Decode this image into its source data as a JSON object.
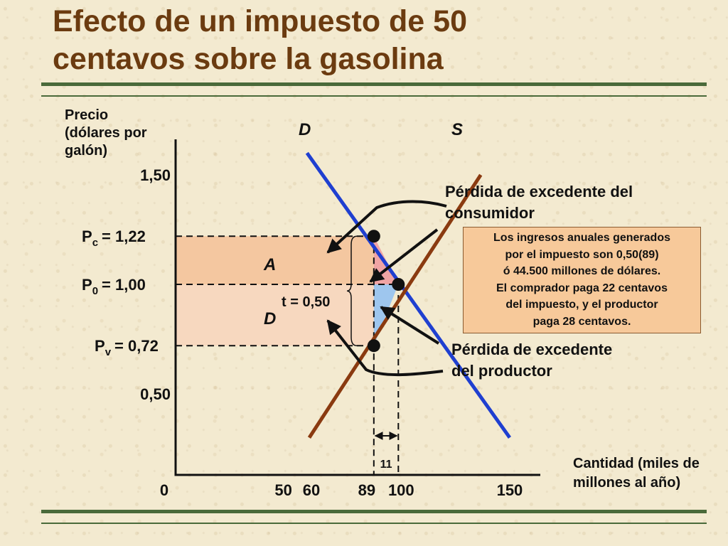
{
  "title_line1": "Efecto de un impuesto de 50",
  "title_line2": "centavos sobre la gasolina",
  "info_box": [
    "Los ingresos anuales generados",
    "por el impuesto son 0,50(89)",
    "ó 44.500 millones de dólares.",
    "El comprador paga 22 centavos",
    "del impuesto, y el productor",
    "paga 28 centavos."
  ],
  "colors": {
    "title": "#6b3b10",
    "rule": "#4a6a3a",
    "demand": "#1f3fd0",
    "supply": "#8a3a10",
    "area_A": "#f4c7a0",
    "area_D": "#f7d8bf",
    "consumer_loss": "#f0a4a4",
    "producer_loss": "#9ec6ee",
    "info_box": "#f7c99a"
  },
  "chart_data": {
    "type": "line",
    "xlabel_lines": [
      "Cantidad (miles de",
      "millones al año)"
    ],
    "ylabel_lines": [
      "Precio",
      "(dólares por",
      "galón)"
    ],
    "xlim": [
      0,
      150
    ],
    "ylim": [
      0.3,
      1.6
    ],
    "x_ticks": [
      {
        "value": 0,
        "label": "0"
      },
      {
        "value": 50,
        "label": "50"
      },
      {
        "value": 60,
        "label": "60"
      },
      {
        "value": 89,
        "label": "89"
      },
      {
        "value": 100,
        "label": "100"
      },
      {
        "value": 150,
        "label": "150"
      }
    ],
    "y_ticks": [
      {
        "value": 1.5,
        "label": "1,50"
      },
      {
        "value": 0.5,
        "label": "0,50"
      }
    ],
    "price_levels": [
      {
        "value": 1.22,
        "symbol": "P",
        "subscript": "c",
        "value_label": "= 1,22"
      },
      {
        "value": 1.0,
        "symbol": "P",
        "subscript": "0",
        "value_label": "= 1,00"
      },
      {
        "value": 0.72,
        "symbol": "P",
        "subscript": "v",
        "value_label": "= 0,72"
      }
    ],
    "series": [
      {
        "name": "D",
        "points": [
          [
            59,
            1.6
          ],
          [
            150,
            0.3
          ]
        ]
      },
      {
        "name": "S",
        "points": [
          [
            60,
            0.3
          ],
          [
            137,
            1.5
          ]
        ]
      }
    ],
    "equilibrium": {
      "quantity": 100,
      "price": 1.0
    },
    "tax_quantity": 89,
    "areas": {
      "A": "A",
      "D": "D"
    },
    "tax_label": "t = 0,50",
    "quantity_change_label": "11",
    "annotations": {
      "consumer_loss_lines": [
        "Pérdida de excedente del",
        "consumidor"
      ],
      "producer_loss_lines": [
        "Pérdida de excedente",
        "del productor"
      ]
    }
  }
}
